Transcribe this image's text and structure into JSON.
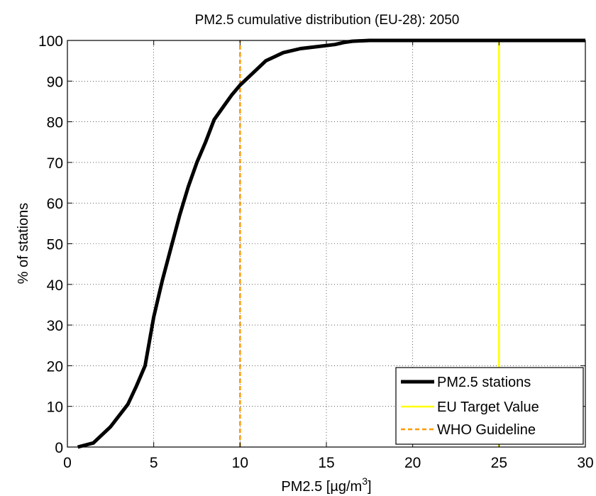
{
  "chart_data": {
    "type": "line",
    "title": "PM2.5 cumulative distribution (EU-28): 2050",
    "xlabel": "PM2.5 [",
    "xlabel_unit": "µg/m",
    "xlabel_sup": "3",
    "xlabel_end": "]",
    "ylabel": "% of stations",
    "xlim": [
      0,
      30
    ],
    "ylim": [
      0,
      100
    ],
    "xticks": [
      0,
      5,
      10,
      15,
      20,
      25,
      30
    ],
    "yticks": [
      0,
      10,
      20,
      30,
      40,
      50,
      60,
      70,
      80,
      90,
      100
    ],
    "grid": true,
    "legend_position": "bottom-right",
    "series": [
      {
        "name": "PM2.5 stations",
        "color": "#000000",
        "style": "solid",
        "x": [
          0.6,
          1.5,
          2.5,
          3.5,
          4.0,
          4.5,
          5.0,
          5.5,
          6.0,
          6.5,
          7.0,
          7.5,
          8.0,
          8.5,
          9.0,
          9.5,
          10.0,
          10.5,
          11.5,
          12.5,
          13.5,
          14.5,
          15.5,
          16.0,
          16.5,
          17.5,
          18.5,
          20.0,
          25.0,
          30.0
        ],
        "y": [
          0,
          1,
          5,
          10.5,
          15,
          20,
          32,
          41,
          49,
          57,
          64,
          70,
          75,
          80.5,
          83.5,
          86.5,
          89,
          91,
          95,
          97,
          98,
          98.5,
          99,
          99.5,
          99.8,
          100,
          100,
          100,
          100,
          100
        ]
      },
      {
        "name": "EU Target Value",
        "color": "#ffff00",
        "style": "solid",
        "x": [
          25,
          25
        ],
        "y": [
          0,
          100
        ]
      },
      {
        "name": "WHO Guideline",
        "color": "#ff9900",
        "style": "dashed",
        "x": [
          10,
          10
        ],
        "y": [
          0,
          100
        ]
      }
    ]
  }
}
